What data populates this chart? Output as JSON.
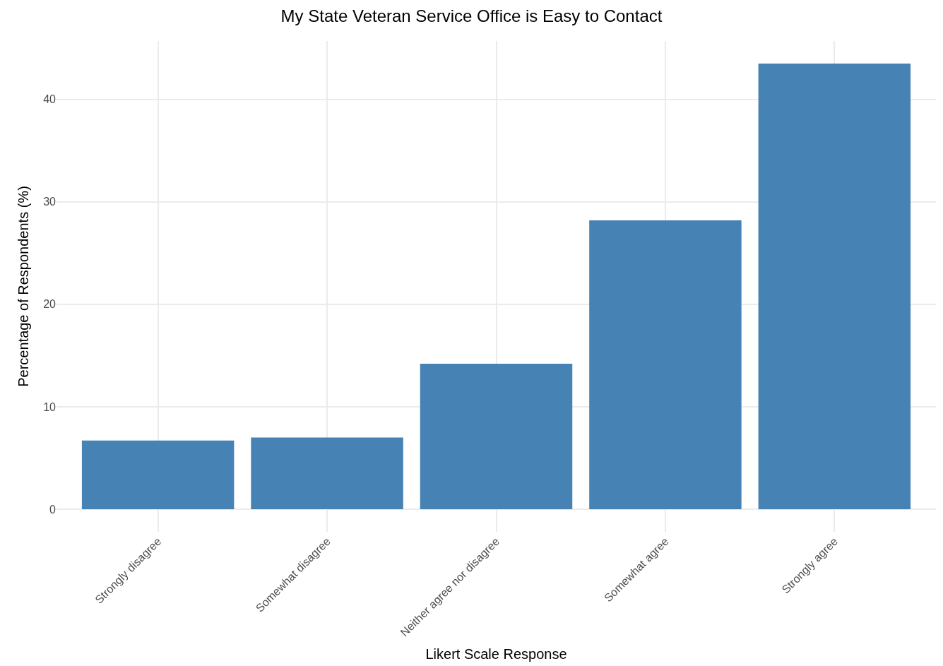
{
  "chart_data": {
    "type": "bar",
    "title": "My State Veteran Service Office is Easy to Contact",
    "xlabel": "Likert Scale Response",
    "ylabel": "Percentage of Respondents (%)",
    "categories": [
      "Strongly disagree",
      "Somewhat disagree",
      "Neither agree nor disagree",
      "Somewhat agree",
      "Strongly agree"
    ],
    "values": [
      6.7,
      7.0,
      14.2,
      28.2,
      43.5
    ],
    "color": "#4682b4",
    "ylim": [
      -2.2,
      45.7
    ],
    "yticks": [
      0,
      10,
      20,
      30,
      40
    ],
    "grid": true
  }
}
